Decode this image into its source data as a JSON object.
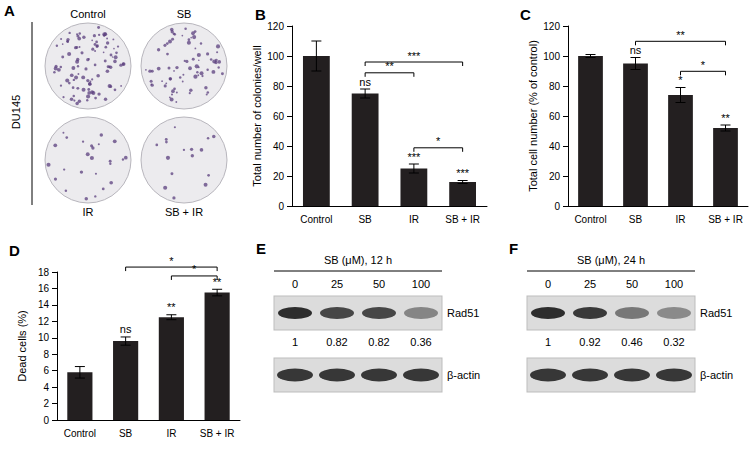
{
  "chart_data": [
    {
      "type": "bar",
      "title": "B",
      "ylabel": "Total number of colonies/well",
      "categories": [
        "Control",
        "SB",
        "IR",
        "SB + IR"
      ],
      "values": [
        100,
        75,
        25,
        16
      ],
      "errors": [
        10,
        3,
        3,
        1
      ],
      "color": "#231f20",
      "ylim": [
        0,
        120
      ],
      "yticks": [
        0,
        20,
        40,
        60,
        80,
        100,
        120
      ],
      "annotations": [
        null,
        "ns",
        "***",
        "***"
      ],
      "brackets": [
        {
          "from": "SB",
          "to": "IR",
          "label": "**"
        },
        {
          "from": "SB",
          "to": "SB + IR",
          "label": "***"
        },
        {
          "from": "IR",
          "to": "SB + IR",
          "label": "*"
        }
      ]
    },
    {
      "type": "bar",
      "title": "C",
      "ylabel": "Total cell number (% of control)",
      "categories": [
        "Control",
        "SB",
        "IR",
        "SB + IR"
      ],
      "values": [
        100,
        95,
        74,
        52
      ],
      "errors": [
        1,
        4,
        5,
        2
      ],
      "color": "#231f20",
      "ylim": [
        0,
        120
      ],
      "yticks": [
        0,
        20,
        40,
        60,
        80,
        100,
        120
      ],
      "annotations": [
        null,
        "ns",
        "*",
        "**"
      ],
      "brackets": [
        {
          "from": "SB",
          "to": "SB + IR",
          "label": "**"
        },
        {
          "from": "IR",
          "to": "SB + IR",
          "label": "*"
        }
      ]
    },
    {
      "type": "bar",
      "title": "D",
      "ylabel": "Dead cells (%)",
      "categories": [
        "Control",
        "SB",
        "IR",
        "SB + IR"
      ],
      "values": [
        5.8,
        9.6,
        12.5,
        15.5
      ],
      "errors": [
        0.7,
        0.5,
        0.3,
        0.4
      ],
      "color": "#231f20",
      "ylim": [
        0,
        18
      ],
      "yticks": [
        0,
        2,
        4,
        6,
        8,
        10,
        12,
        14,
        16,
        18
      ],
      "annotations": [
        null,
        "ns",
        "**",
        "**"
      ],
      "brackets": [
        {
          "from": "SB",
          "to": "SB + IR",
          "label": "*"
        },
        {
          "from": "IR",
          "to": "SB + IR",
          "label": "*"
        }
      ]
    }
  ],
  "image_panel": {
    "title": "A",
    "cell_line": "DU145",
    "wells": [
      "Control",
      "SB",
      "IR",
      "SB + IR"
    ]
  },
  "blots": [
    {
      "title": "E",
      "treatment": "SB (μM), 12 h",
      "doses": [
        0,
        25,
        50,
        100
      ],
      "target": "Rad51",
      "quantification": [
        1,
        0.82,
        0.82,
        0.36
      ],
      "loading_control": "β-actin"
    },
    {
      "title": "F",
      "treatment": "SB (μM), 24 h",
      "doses": [
        0,
        25,
        50,
        100
      ],
      "target": "Rad51",
      "quantification": [
        1,
        0.92,
        0.46,
        0.32
      ],
      "loading_control": "β-actin"
    }
  ]
}
